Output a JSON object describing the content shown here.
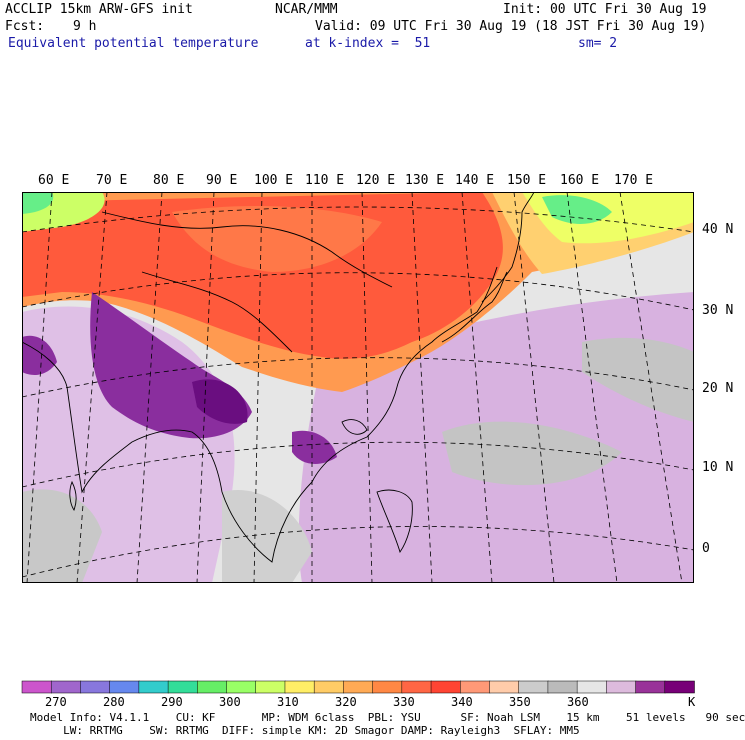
{
  "header": {
    "model": "ACCLIP 15km ARW-GFS init",
    "org": "NCAR/MMM",
    "init": "Init: 00 UTC Fri 30 Aug 19",
    "fcst_label": "Fcst:",
    "fcst_value": "9 h",
    "valid": "Valid: 09 UTC Fri 30 Aug 19 (18 JST Fri 30 Aug 19)",
    "field": "Equivalent potential temperature",
    "level": "at k-index =  51",
    "smoothing": "sm= 2"
  },
  "map": {
    "lon_labels": [
      "60 E",
      "70 E",
      "80 E",
      "90 E",
      "100 E",
      "110 E",
      "120 E",
      "130 E",
      "140 E",
      "150 E",
      "160 E",
      "170 E"
    ],
    "lat_labels": [
      "40 N",
      "30 N",
      "20 N",
      "10 N",
      "0"
    ],
    "projection": "lambert-conformal",
    "colors": {
      "ocean_purple": "#d8b2e0",
      "warm_red": "#ff5a3c",
      "warm_orange": "#ff9a50",
      "cool_green": "#66ee88",
      "gray": "#c4c4c4",
      "deep_purple": "#8a2e9e"
    }
  },
  "colorbar": {
    "colors": [
      "#cc55cc",
      "#a066cc",
      "#8877dd",
      "#6688ee",
      "#33cccc",
      "#33dd99",
      "#66ee66",
      "#99ff66",
      "#ccff66",
      "#ffee66",
      "#ffcc66",
      "#ffaa55",
      "#ff8844",
      "#ff6644",
      "#ff4433",
      "#ff9977",
      "#ffccaa",
      "#cccccc",
      "#bbbbbb",
      "#e6e6e6",
      "#ddbbdd",
      "#993399",
      "#770077"
    ],
    "ticks": [
      "270",
      "280",
      "290",
      "300",
      "310",
      "320",
      "330",
      "340",
      "350",
      "360"
    ],
    "unit": "K"
  },
  "model_info": {
    "line1": "Model Info: V4.1.1    CU: KF       MP: WDM 6class  PBL: YSU      SF: Noah LSM    15 km    51 levels   90 sec",
    "line2": "     LW: RRTMG    SW: RRTMG  DIFF: simple KM: 2D Smagor DAMP: Rayleigh3  SFLAY: MM5"
  }
}
